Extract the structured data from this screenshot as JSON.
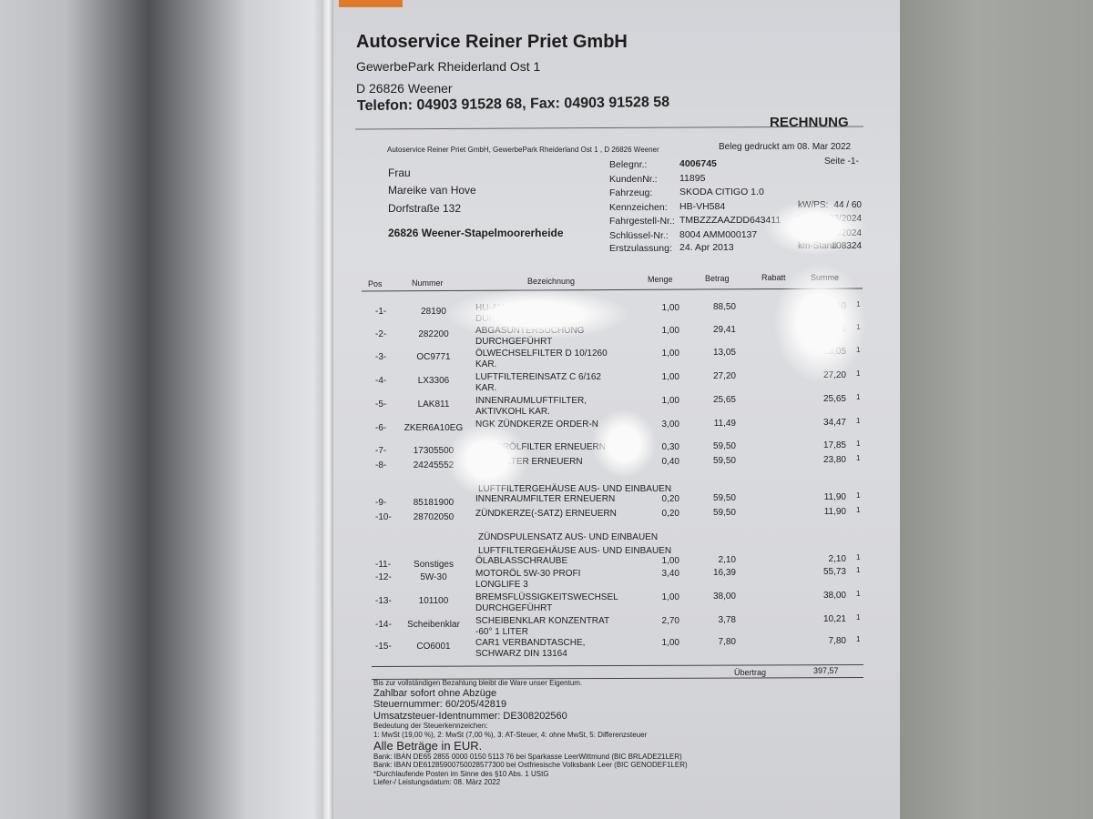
{
  "company": {
    "name": "Autoservice Reiner Priet GmbH",
    "street": "GewerbePark Rheiderland Ost 1",
    "city": "D 26826 Weener",
    "contact": "Telefon: 04903 91528 68, Fax: 04903 91528 58"
  },
  "doc_type": "RECHNUNG",
  "sender_line": "Autoservice Reiner Priet GmbH, GewerbePark Rheiderland Ost 1 , D 26826 Weener",
  "printed": "Beleg gedruckt am 08. Mar 2022",
  "page": "Seite -1-",
  "recipient": {
    "salutation": "Frau",
    "name": "Mareike van Hove",
    "street": "Dorfstraße 132",
    "city": "26826 Weener-Stapelmoorerheide"
  },
  "info": [
    {
      "label": "Belegnr.:",
      "value": "4006745"
    },
    {
      "label": "KundenNr.:",
      "value": "11895"
    },
    {
      "label": "Fahrzeug:",
      "value": "SKODA CITIGO 1.0"
    },
    {
      "label": "Kennzeichen:",
      "value": "HB-VH584"
    },
    {
      "label": "Fahrgestell-Nr.:",
      "value": "TMBZZZAAZDD643411"
    },
    {
      "label": "Schlüssel-Nr.:",
      "value": "8004 AMM000137"
    },
    {
      "label": "Erstzulassung:",
      "value": "24. Apr 2013"
    }
  ],
  "info_right": [
    {
      "label": "kW/PS:",
      "value": "44 / 60"
    },
    {
      "label": "HU",
      "value": "03/2024"
    },
    {
      "label": "AU",
      "value": "03/2024"
    },
    {
      "label": "km-Stand",
      "value": "108324"
    }
  ],
  "table": {
    "headers": {
      "pos": "Pos",
      "nummer": "Nummer",
      "bezeichnung": "Bezeichnung",
      "menge": "Menge",
      "betrag": "Betrag",
      "rabatt": "Rabatt",
      "summe": "Summe"
    },
    "rows": [
      {
        "pos": "-1-",
        "nummer": "28190",
        "desc": [
          "HU-AU GEBÜHR",
          "DURCHGEFÜHRT"
        ],
        "menge": "1,00",
        "betrag": "88,50",
        "summe": "88,50",
        "st": "1"
      },
      {
        "pos": "-2-",
        "nummer": "282200",
        "desc": [
          "ABGASUNTERSUCHUNG",
          "DURCHGEFÜHRT"
        ],
        "menge": "1,00",
        "betrag": "29,41",
        "summe": "29,41",
        "st": "1"
      },
      {
        "pos": "-3-",
        "nummer": "OC9771",
        "desc": [
          "ÖLWECHSELFILTER D 10/1260",
          "KAR."
        ],
        "menge": "1,00",
        "betrag": "13,05",
        "summe": "13,05",
        "st": "1"
      },
      {
        "pos": "-4-",
        "nummer": "LX3306",
        "desc": [
          "LUFTFILTEREINSATZ C 6/162",
          "KAR."
        ],
        "menge": "1,00",
        "betrag": "27,20",
        "summe": "27,20",
        "st": "1"
      },
      {
        "pos": "-5-",
        "nummer": "LAK811",
        "desc": [
          "INNENRAUMLUFTFILTER,",
          "AKTIVKOHL KAR."
        ],
        "menge": "1,00",
        "betrag": "25,65",
        "summe": "25,65",
        "st": "1"
      },
      {
        "pos": "-6-",
        "nummer": "ZKER6A10EG",
        "desc": [
          "NGK ZÜNDKERZE ORDER-N"
        ],
        "menge": "3,00",
        "betrag": "11,49",
        "summe": "34,47",
        "st": "1"
      },
      {
        "pos": "-7-",
        "nummer": "17305500",
        "desc": [
          "MOTORÖLFILTER ERNEUERN"
        ],
        "menge": "0,30",
        "betrag": "59,50",
        "summe": "17,85",
        "st": "1"
      },
      {
        "pos": "-8-",
        "nummer": "24245552",
        "desc": [
          "LUFTFILTER ERNEUERN"
        ],
        "menge": "0,40",
        "betrag": "59,50",
        "summe": "23,80",
        "st": "1"
      },
      {
        "pos": "-9-",
        "nummer": "85181900",
        "pre": [
          "LUFTFILTERGEHÄUSE AUS- UND EINBAUEN"
        ],
        "desc": [
          "INNENRAUMFILTER ERNEUERN"
        ],
        "menge": "0,20",
        "betrag": "59,50",
        "summe": "11,90",
        "st": "1"
      },
      {
        "pos": "-10-",
        "nummer": "28702050",
        "desc": [
          "ZÜNDKERZE(-SATZ) ERNEUERN"
        ],
        "menge": "0,20",
        "betrag": "59,50",
        "summe": "11,90",
        "st": "1"
      },
      {
        "pos": "-11-",
        "nummer": "Sonstiges",
        "pre": [
          "ZÜNDSPULENSATZ AUS- UND EINBAUEN",
          "LUFTFILTERGEHÄUSE AUS- UND EINBAUEN"
        ],
        "desc": [
          "ÖLABLASSCHRAUBE"
        ],
        "menge": "1,00",
        "betrag": "2,10",
        "summe": "2,10",
        "st": "1"
      },
      {
        "pos": "-12-",
        "nummer": "5W-30",
        "desc": [
          "MOTORÖL 5W-30 PROFI",
          "LONGLIFE 3"
        ],
        "menge": "3,40",
        "betrag": "16,39",
        "summe": "55,73",
        "st": "1"
      },
      {
        "pos": "-13-",
        "nummer": "101100",
        "desc": [
          "BREMSFLÜSSIGKEITSWECHSEL",
          "DURCHGEFÜHRT"
        ],
        "menge": "1,00",
        "betrag": "38,00",
        "summe": "38,00",
        "st": "1"
      },
      {
        "pos": "-14-",
        "nummer": "Scheibenklar",
        "desc": [
          "SCHEIBENKLAR KONZENTRAT",
          "-60° 1 LITER"
        ],
        "menge": "2,70",
        "betrag": "3,78",
        "summe": "10,21",
        "st": "1"
      },
      {
        "pos": "-15-",
        "nummer": "CO6001",
        "desc": [
          "CAR1 VERBANDTASCHE,",
          "SCHWARZ DIN 13164"
        ],
        "menge": "1,00",
        "betrag": "7,80",
        "summe": "7,80",
        "st": "1"
      }
    ],
    "carry_label": "Übertrag",
    "carry_value": "397,57"
  },
  "footer": [
    {
      "text": "Bis zur vollständigen Bezahlung bleibt die Ware unser Eigentum.",
      "size": "sm"
    },
    {
      "text": "Zahlbar sofort ohne Abzüge",
      "size": "md"
    },
    {
      "text": "Steuernummer: 60/205/42819",
      "size": "md"
    },
    {
      "text": "Umsatzsteuer-Identnummer: DE308202560",
      "size": "md"
    },
    {
      "text": "Bedeutung der Steuerkennzeichen:",
      "size": "sm"
    },
    {
      "text": "1: MwSt (19,00 %), 2: MwSt (7,00 %), 3: AT-Steuer, 4: ohne MwSt, 5: Differenzsteuer",
      "size": "sm"
    },
    {
      "text": "Alle Beträge in EUR.",
      "size": "lg"
    },
    {
      "text": "Bank: IBAN DE65 2855 0000 0150 5113 76 bei Sparkasse LeerWittmund (BIC BRLADE21LER)",
      "size": "sm"
    },
    {
      "text": "Bank: IBAN DE61285900750028577300 bei Ostfriesische Volksbank Leer (BIC GENODEF1LER)",
      "size": "sm"
    },
    {
      "text": "*Durchlaufende Posten im Sinne des §10 Abs. 1 UStG",
      "size": "sm"
    },
    {
      "text": "Liefer-/ Leistungsdatum: 08. März 2022",
      "size": "sm"
    }
  ]
}
